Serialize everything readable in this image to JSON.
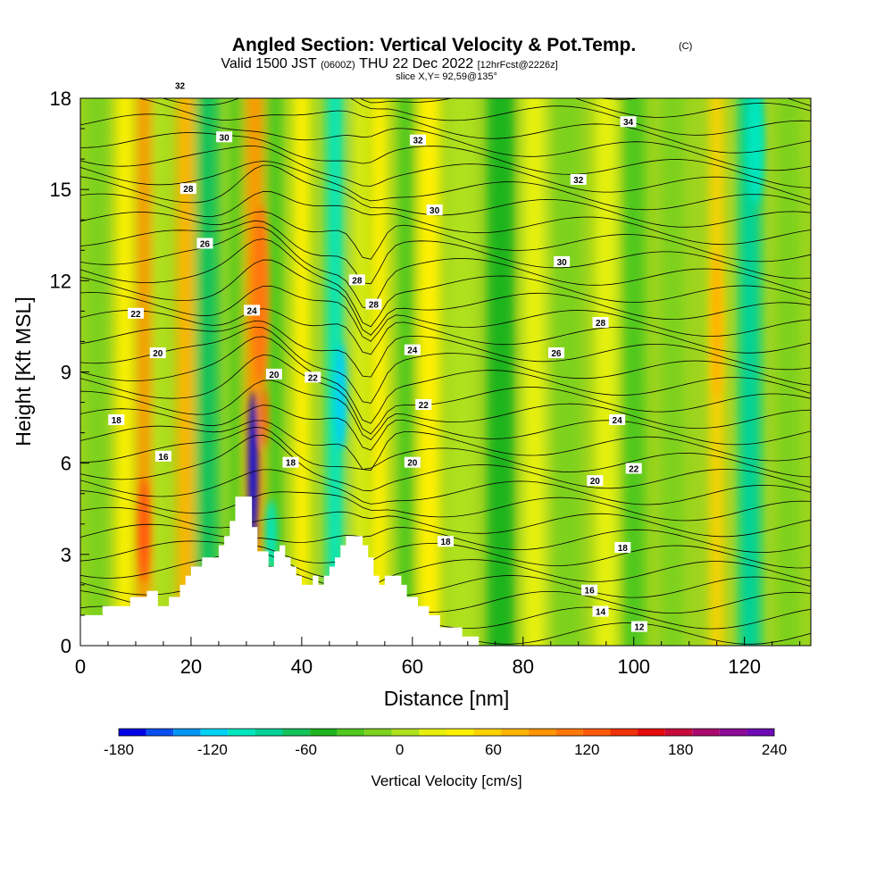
{
  "chart_data": {
    "type": "heatmap",
    "title": "Angled Section: Vertical Velocity & Pot.Temp.",
    "title_mark": "(C)",
    "subtitle": {
      "prefix": "Valid 1500 JST",
      "utc": "(0600Z)",
      "date": "THU 22 Dec 2022",
      "forecast": "[12hrFcst@2226z]"
    },
    "slice_label": "slice X,Y= 92,59@135°",
    "xlabel": "Distance [nm]",
    "ylabel": "Height [Kft MSL]",
    "xlim": [
      0,
      132
    ],
    "ylim": [
      0,
      18
    ],
    "x_ticks": [
      "0",
      "20",
      "40",
      "60",
      "80",
      "100",
      "120"
    ],
    "y_ticks": [
      "0",
      "3",
      "6",
      "9",
      "12",
      "15",
      "18"
    ],
    "colorbar": {
      "label": "Vertical Velocity [cm/s]",
      "tick_labels": [
        "-180",
        "-120",
        "-60",
        "0",
        "60",
        "120",
        "180",
        "240"
      ],
      "levels": [
        -180,
        240
      ],
      "colors": [
        "#0000e6",
        "#0a50f0",
        "#0096f5",
        "#00d2f5",
        "#00e6be",
        "#00d296",
        "#14c35a",
        "#1eb41e",
        "#50c81e",
        "#7dd21e",
        "#afe11e",
        "#e6f00a",
        "#fff000",
        "#ffd200",
        "#ffb400",
        "#ff9600",
        "#ff780a",
        "#ff5a0a",
        "#f0320a",
        "#e60a0a",
        "#c80a3c",
        "#aa0a6e",
        "#8c0a96",
        "#6e0ab4"
      ]
    },
    "potential_temperature_labels": [
      {
        "x": 10,
        "y": 10.9,
        "text": "22"
      },
      {
        "x": 18,
        "y": 18.4,
        "text": "32"
      },
      {
        "x": 26,
        "y": 16.7,
        "text": "30"
      },
      {
        "x": 19.5,
        "y": 15.0,
        "text": "28"
      },
      {
        "x": 22.5,
        "y": 13.2,
        "text": "26"
      },
      {
        "x": 31,
        "y": 11.0,
        "text": "24"
      },
      {
        "x": 14,
        "y": 9.6,
        "text": "20"
      },
      {
        "x": 6.5,
        "y": 7.4,
        "text": "18"
      },
      {
        "x": 15,
        "y": 6.2,
        "text": "16"
      },
      {
        "x": 35,
        "y": 8.9,
        "text": "20"
      },
      {
        "x": 42,
        "y": 8.8,
        "text": "22"
      },
      {
        "x": 50,
        "y": 12.0,
        "text": "28"
      },
      {
        "x": 53,
        "y": 11.2,
        "text": "28"
      },
      {
        "x": 60,
        "y": 9.7,
        "text": "24"
      },
      {
        "x": 62,
        "y": 7.9,
        "text": "22"
      },
      {
        "x": 60,
        "y": 6.0,
        "text": "20"
      },
      {
        "x": 38,
        "y": 6.0,
        "text": "18"
      },
      {
        "x": 61,
        "y": 16.6,
        "text": "32"
      },
      {
        "x": 64,
        "y": 14.3,
        "text": "30"
      },
      {
        "x": 99,
        "y": 17.2,
        "text": "34"
      },
      {
        "x": 90,
        "y": 15.3,
        "text": "32"
      },
      {
        "x": 87,
        "y": 12.6,
        "text": "30"
      },
      {
        "x": 94,
        "y": 10.6,
        "text": "28"
      },
      {
        "x": 86,
        "y": 9.6,
        "text": "26"
      },
      {
        "x": 97,
        "y": 7.4,
        "text": "24"
      },
      {
        "x": 100,
        "y": 5.8,
        "text": "22"
      },
      {
        "x": 93,
        "y": 5.4,
        "text": "20"
      },
      {
        "x": 66,
        "y": 3.4,
        "text": "18"
      },
      {
        "x": 98,
        "y": 3.2,
        "text": "18"
      },
      {
        "x": 92,
        "y": 1.8,
        "text": "16"
      },
      {
        "x": 94,
        "y": 1.1,
        "text": "14"
      },
      {
        "x": 101,
        "y": 0.6,
        "text": "12"
      }
    ],
    "terrain_profile": [
      [
        0,
        1.0
      ],
      [
        4,
        1.0
      ],
      [
        4,
        1.3
      ],
      [
        9,
        1.3
      ],
      [
        9,
        1.6
      ],
      [
        12,
        1.6
      ],
      [
        12,
        1.8
      ],
      [
        14,
        1.8
      ],
      [
        14,
        1.3
      ],
      [
        16,
        1.3
      ],
      [
        16,
        1.6
      ],
      [
        18,
        1.6
      ],
      [
        18,
        2.0
      ],
      [
        19,
        2.0
      ],
      [
        19,
        2.3
      ],
      [
        20,
        2.3
      ],
      [
        20,
        2.6
      ],
      [
        22,
        2.6
      ],
      [
        22,
        2.9
      ],
      [
        25,
        2.9
      ],
      [
        25,
        3.3
      ],
      [
        26,
        3.3
      ],
      [
        26,
        3.6
      ],
      [
        27,
        3.6
      ],
      [
        27,
        4.1
      ],
      [
        28,
        4.1
      ],
      [
        28,
        4.9
      ],
      [
        31,
        4.9
      ],
      [
        31,
        3.9
      ],
      [
        32,
        3.9
      ],
      [
        32,
        3.1
      ],
      [
        34,
        3.1
      ],
      [
        34,
        2.6
      ],
      [
        35,
        2.6
      ],
      [
        35,
        3.1
      ],
      [
        36,
        3.1
      ],
      [
        36,
        3.3
      ],
      [
        37,
        3.3
      ],
      [
        37,
        2.9
      ],
      [
        38,
        2.9
      ],
      [
        38,
        2.6
      ],
      [
        39,
        2.6
      ],
      [
        39,
        2.3
      ],
      [
        40,
        2.3
      ],
      [
        40,
        2.0
      ],
      [
        42,
        2.0
      ],
      [
        42,
        2.3
      ],
      [
        43,
        2.3
      ],
      [
        43,
        2.0
      ],
      [
        44,
        2.0
      ],
      [
        44,
        2.3
      ],
      [
        45,
        2.3
      ],
      [
        45,
        2.6
      ],
      [
        46,
        2.6
      ],
      [
        46,
        2.9
      ],
      [
        47,
        2.9
      ],
      [
        47,
        3.3
      ],
      [
        48,
        3.3
      ],
      [
        48,
        3.6
      ],
      [
        51,
        3.6
      ],
      [
        51,
        3.3
      ],
      [
        52,
        3.3
      ],
      [
        52,
        2.9
      ],
      [
        53,
        2.9
      ],
      [
        53,
        2.3
      ],
      [
        54,
        2.3
      ],
      [
        54,
        2.0
      ],
      [
        55,
        2.0
      ],
      [
        55,
        2.3
      ],
      [
        58,
        2.3
      ],
      [
        58,
        2.0
      ],
      [
        59,
        2.0
      ],
      [
        59,
        1.6
      ],
      [
        61,
        1.6
      ],
      [
        61,
        1.3
      ],
      [
        63,
        1.3
      ],
      [
        63,
        1.0
      ],
      [
        65,
        1.0
      ],
      [
        65,
        0.6
      ],
      [
        69,
        0.6
      ],
      [
        69,
        0.3
      ],
      [
        72,
        0.3
      ],
      [
        72,
        0
      ]
    ],
    "vertical_velocity_bands": [
      {
        "x": 3,
        "w": 4,
        "v": -20
      },
      {
        "x": 8,
        "w": 3,
        "v": 40
      },
      {
        "x": 11.5,
        "w": 2.5,
        "v": 95
      },
      {
        "x": 14.5,
        "w": 3,
        "v": 10
      },
      {
        "x": 19,
        "w": 3,
        "v": 70
      },
      {
        "x": 23,
        "w": 4,
        "v": -70
      },
      {
        "x": 28,
        "w": 2,
        "v": -30
      },
      {
        "x": 31.5,
        "w": 3,
        "v": 85
      },
      {
        "x": 35,
        "w": 3,
        "v": -40
      },
      {
        "x": 40,
        "w": 3,
        "v": 40
      },
      {
        "x": 46,
        "w": 3,
        "v": -95
      },
      {
        "x": 50.5,
        "w": 2,
        "v": 15
      },
      {
        "x": 54,
        "w": 3,
        "v": 45
      },
      {
        "x": 59,
        "w": 3,
        "v": -30
      },
      {
        "x": 63,
        "w": 4,
        "v": 30
      },
      {
        "x": 69,
        "w": 5,
        "v": 10
      },
      {
        "x": 76,
        "w": 5,
        "v": -45
      },
      {
        "x": 82,
        "w": 4,
        "v": 20
      },
      {
        "x": 88,
        "w": 5,
        "v": -20
      },
      {
        "x": 95,
        "w": 4,
        "v": 15
      },
      {
        "x": 100,
        "w": 4,
        "v": -30
      },
      {
        "x": 107,
        "w": 4,
        "v": -15
      },
      {
        "x": 115,
        "w": 2.5,
        "v": 60
      },
      {
        "x": 121,
        "w": 4,
        "v": -80
      },
      {
        "x": 128,
        "w": 4,
        "v": -15
      }
    ],
    "strong_cells": [
      {
        "x": 31.2,
        "y": 5.8,
        "w": 1.6,
        "h": 5.2,
        "v": -170
      },
      {
        "x": 34.5,
        "y": 3.6,
        "w": 2,
        "h": 2.4,
        "v": -110
      },
      {
        "x": 47,
        "y": 8.2,
        "w": 2.2,
        "h": 3.5,
        "v": -115
      },
      {
        "x": 11.5,
        "y": 3.8,
        "w": 2,
        "h": 3.5,
        "v": 125
      },
      {
        "x": 32.5,
        "y": 11.5,
        "w": 3,
        "h": 6,
        "v": 100
      },
      {
        "x": 33.2,
        "y": 7.5,
        "w": 1.2,
        "h": 2,
        "v": 120
      },
      {
        "x": 122,
        "y": 16.5,
        "w": 3,
        "h": 4,
        "v": -100
      },
      {
        "x": 115,
        "y": 10.5,
        "w": 2,
        "h": 5,
        "v": 80
      }
    ]
  }
}
